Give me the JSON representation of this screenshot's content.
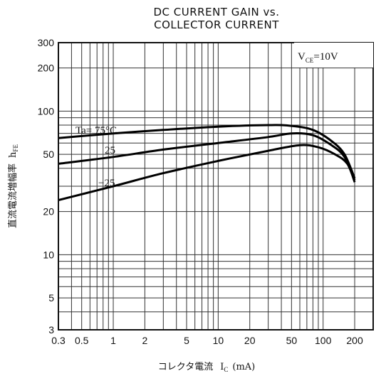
{
  "chart_data": {
    "type": "line",
    "title_line1": "DC CURRENT GAIN vs.",
    "title_line2": "COLLECTOR CURRENT",
    "x_scale": "log",
    "y_scale": "log",
    "xlim": [
      0.3,
      300
    ],
    "ylim": [
      3,
      300
    ],
    "x_ticks": [
      0.3,
      0.5,
      1,
      2,
      5,
      10,
      20,
      50,
      100,
      200
    ],
    "x_tick_labels": [
      "0.3",
      "0.5",
      "1",
      "2",
      "5",
      "10",
      "20",
      "50",
      "100",
      "200"
    ],
    "y_ticks": [
      3,
      5,
      10,
      20,
      50,
      100,
      200,
      300
    ],
    "y_tick_labels": [
      "3",
      "5",
      "10",
      "20",
      "50",
      "100",
      "200",
      "300"
    ],
    "xlabel": {
      "prefix": "コレクタ電流",
      "symbol": "I",
      "sub": "C",
      "unit": "(mA)"
    },
    "ylabel": {
      "prefix": "直流電流増幅率",
      "symbol": "h",
      "sub": "FE"
    },
    "condition": {
      "symbol": "V",
      "sub": "CE",
      "value": "=10V"
    },
    "series": [
      {
        "name": "Ta= 75°C",
        "x": [
          0.3,
          1,
          3,
          10,
          30,
          50,
          80,
          120,
          160,
          200
        ],
        "y": [
          65,
          70,
          74,
          78,
          80,
          79,
          74,
          62,
          50,
          34
        ]
      },
      {
        "name": "25",
        "x": [
          0.3,
          1,
          3,
          10,
          30,
          50,
          80,
          120,
          160,
          200
        ],
        "y": [
          43,
          48,
          54,
          60,
          66,
          70,
          68,
          58,
          48,
          33
        ]
      },
      {
        "name": "−25",
        "x": [
          0.3,
          1,
          3,
          10,
          30,
          60,
          90,
          130,
          170,
          200
        ],
        "y": [
          24,
          30,
          37,
          45,
          53,
          58,
          56,
          50,
          43,
          32
        ]
      }
    ],
    "grid": true
  }
}
